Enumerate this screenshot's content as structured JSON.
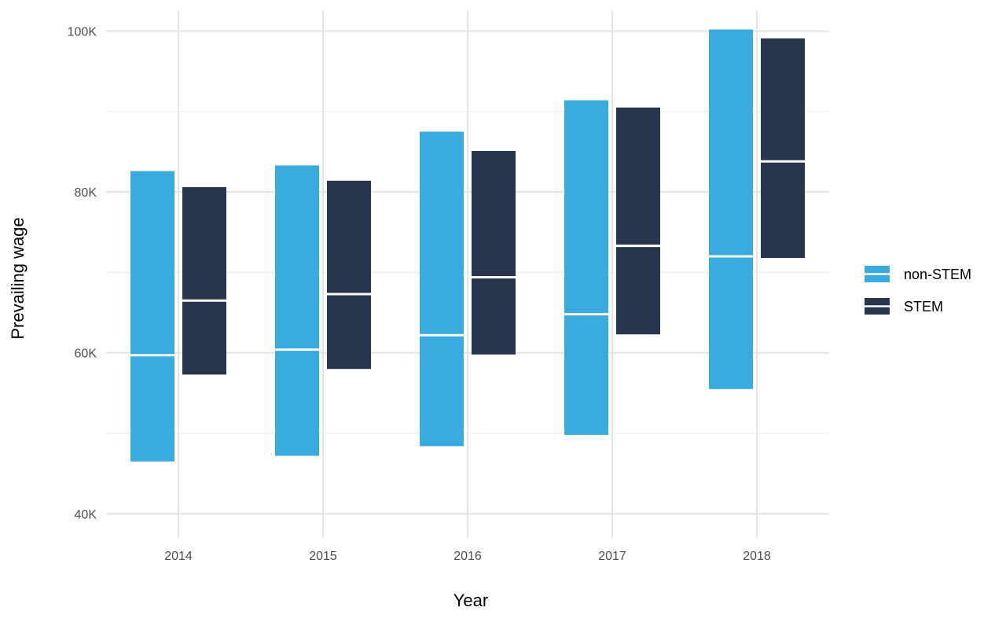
{
  "chart_data": {
    "type": "bar",
    "subtype": "floating-range-with-median",
    "title": "",
    "xlabel": "Year",
    "ylabel": "Prevailing wage",
    "categories": [
      "2014",
      "2015",
      "2016",
      "2017",
      "2018"
    ],
    "ylim": [
      37000,
      102500
    ],
    "yticks": [
      40000,
      60000,
      80000,
      100000
    ],
    "ytick_labels": [
      "40K",
      "60K",
      "80K",
      "100K"
    ],
    "grid": true,
    "legend_position": "right",
    "series": [
      {
        "name": "non-STEM",
        "color": "#29a4db",
        "low": [
          46500,
          47200,
          48400,
          49800,
          55500
        ],
        "median": [
          59700,
          60400,
          62200,
          64800,
          72000
        ],
        "high": [
          82600,
          83300,
          87500,
          91400,
          100200
        ]
      },
      {
        "name": "STEM",
        "color": "#17263f",
        "low": [
          57300,
          58000,
          59800,
          62300,
          71800
        ],
        "median": [
          66500,
          67300,
          69400,
          73300,
          83800
        ],
        "high": [
          80600,
          81400,
          85100,
          90500,
          99100
        ]
      }
    ]
  }
}
